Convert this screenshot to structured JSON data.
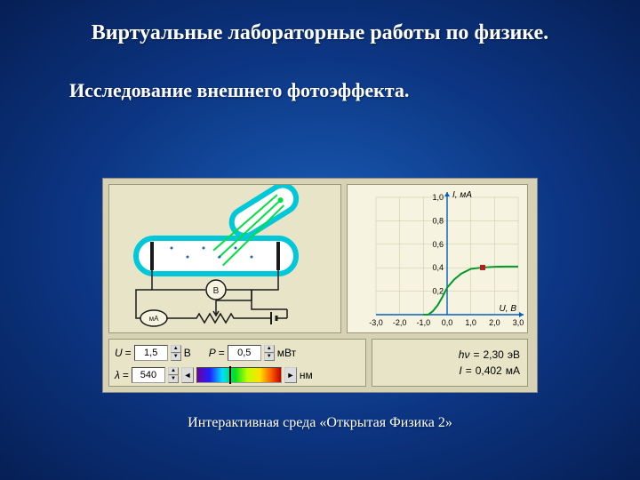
{
  "title": "Виртуальные лабораторные работы по физике.",
  "subtitle": "Исследование внешнего фотоэффекта.",
  "caption": "Интерактивная среда «Открытая  Физика 2»",
  "background": {
    "gradient_center": "#1a5fb8",
    "gradient_mid": "#0c3582",
    "gradient_edge": "#061f55"
  },
  "sim_panel_bg": "#d8d2b4",
  "panel_bg": "#e8e4c8",
  "diagram": {
    "tube_stroke": "#00c8d8",
    "tube_stroke_width": 6,
    "tube_fill": "#ffffff",
    "light_color": "#00e040",
    "plate_color": "#1a1a1a",
    "wire_color": "#1a1a1a",
    "meter_v_label": "B",
    "meter_a_label": "мА"
  },
  "chart": {
    "type": "line",
    "x_label": "U, В",
    "y_label": "I, мА",
    "xlim": [
      -3.0,
      3.0
    ],
    "ylim": [
      0,
      1.0
    ],
    "xticks": [
      -3.0,
      -2.0,
      -1.0,
      0.0,
      1.0,
      2.0,
      3.0
    ],
    "yticks": [
      0.2,
      0.4,
      0.6,
      0.8,
      1.0
    ],
    "axis_color": "#0060c0",
    "grid_color": "#c8c4a4",
    "curve_color": "#009a2a",
    "curve_width": 2,
    "marker_color": "#b02020",
    "marker_x": 1.5,
    "marker_y": 0.402,
    "points": [
      {
        "x": -1.0,
        "y": 0.0
      },
      {
        "x": -0.8,
        "y": 0.0
      },
      {
        "x": -0.6,
        "y": 0.03
      },
      {
        "x": -0.4,
        "y": 0.08
      },
      {
        "x": -0.2,
        "y": 0.15
      },
      {
        "x": 0.0,
        "y": 0.23
      },
      {
        "x": 0.3,
        "y": 0.3
      },
      {
        "x": 0.6,
        "y": 0.35
      },
      {
        "x": 1.0,
        "y": 0.39
      },
      {
        "x": 1.5,
        "y": 0.402
      },
      {
        "x": 2.0,
        "y": 0.408
      },
      {
        "x": 2.5,
        "y": 0.41
      },
      {
        "x": 3.0,
        "y": 0.41
      }
    ],
    "tick_fontsize": 9,
    "label_fontsize": 10
  },
  "controls": {
    "voltage": {
      "symbol": "U",
      "value": "1,5",
      "unit": "В"
    },
    "power": {
      "symbol": "P",
      "value": "0,5",
      "unit": "мВт"
    },
    "wavelength": {
      "symbol": "λ",
      "value": "540",
      "unit": "нм",
      "marker_pct": 38
    }
  },
  "readouts": {
    "energy": {
      "symbol": "hν",
      "value": "2,30",
      "unit": "эВ"
    },
    "current": {
      "symbol": "I",
      "value": "0,402",
      "unit": "мА"
    }
  }
}
